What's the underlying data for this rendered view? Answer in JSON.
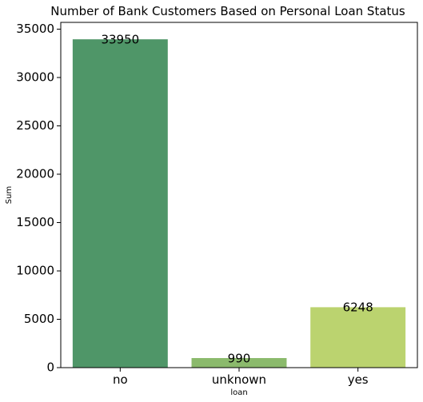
{
  "chart_data": {
    "type": "bar",
    "title": "Number of Bank Customers Based on Personal Loan Status",
    "xlabel": "loan",
    "ylabel": "Sum",
    "categories": [
      "no",
      "unknown",
      "yes"
    ],
    "values": [
      33950,
      990,
      6248
    ],
    "data_labels": [
      "33950",
      "990",
      "6248"
    ],
    "colors": [
      "#4f9668",
      "#8bba6c",
      "#bbd36f"
    ],
    "ylim": [
      0,
      35700
    ],
    "yticks": [
      0,
      5000,
      10000,
      15000,
      20000,
      25000,
      30000,
      35000
    ],
    "ytick_labels": [
      "0",
      "5000",
      "10000",
      "15000",
      "20000",
      "25000",
      "30000",
      "35000"
    ],
    "grid": false,
    "legend": "none"
  }
}
